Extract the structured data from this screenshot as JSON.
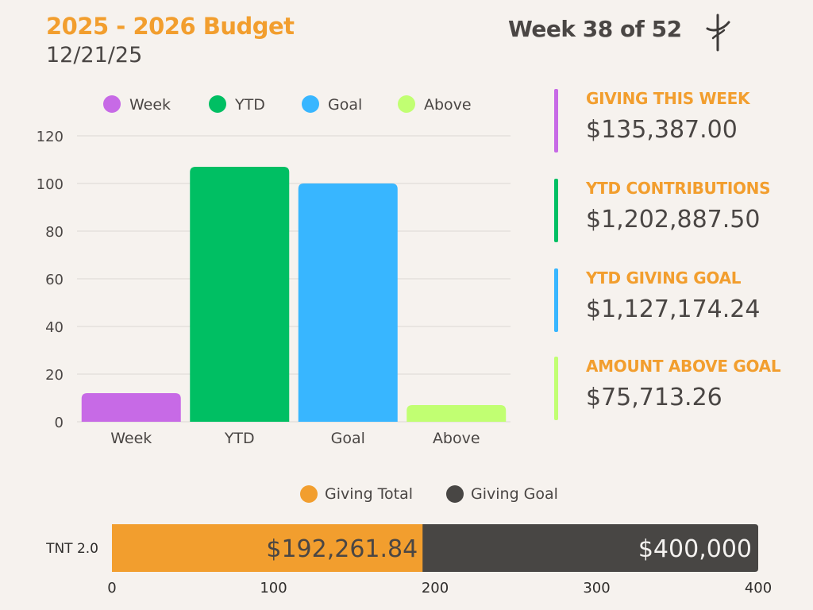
{
  "header": {
    "title": "2025 - 2026 Budget",
    "date": "12/21/25",
    "week": "Week 38 of 52"
  },
  "colors": {
    "orange": "#f29e2e",
    "text": "#4a4644",
    "week": "#c76ae6",
    "ytd": "#00bf63",
    "goal": "#38b6ff",
    "above": "#c1ff72",
    "grid": "#dcd8d4",
    "dark": "#484644"
  },
  "stats": [
    {
      "label": "GIVING THIS WEEK",
      "value": "$135,387.00",
      "color": "#c76ae6"
    },
    {
      "label": "YTD CONTRIBUTIONS",
      "value": "$1,202,887.50",
      "color": "#00bf63"
    },
    {
      "label": "YTD GIVING GOAL",
      "value": "$1,127,174.24",
      "color": "#38b6ff"
    },
    {
      "label": "AMOUNT ABOVE GOAL",
      "value": "$75,713.26",
      "color": "#c1ff72"
    }
  ],
  "chart_data": [
    {
      "type": "bar",
      "title": "",
      "categories": [
        "Week",
        "YTD",
        "Goal",
        "Above"
      ],
      "values": [
        12,
        107,
        100,
        7
      ],
      "colors": [
        "#c76ae6",
        "#00bf63",
        "#38b6ff",
        "#c1ff72"
      ],
      "legend": [
        "Week",
        "YTD",
        "Goal",
        "Above"
      ],
      "legend_position": "top",
      "ylim": [
        0,
        120
      ],
      "yticks": [
        0,
        20,
        40,
        60,
        80,
        100,
        120
      ],
      "grid": true,
      "xlabel": "",
      "ylabel": ""
    },
    {
      "type": "bar",
      "orientation": "horizontal-stacked",
      "categories": [
        "TNT 2.0"
      ],
      "series": [
        {
          "name": "Giving Total",
          "value": 192.26,
          "label": "$192,261.84",
          "color": "#f29e2e"
        },
        {
          "name": "Giving Goal",
          "value": 400,
          "label": "$400,000",
          "color": "#484644"
        }
      ],
      "legend_position": "top",
      "xlim": [
        0,
        400
      ],
      "xticks": [
        0,
        100,
        200,
        300,
        400
      ]
    }
  ]
}
